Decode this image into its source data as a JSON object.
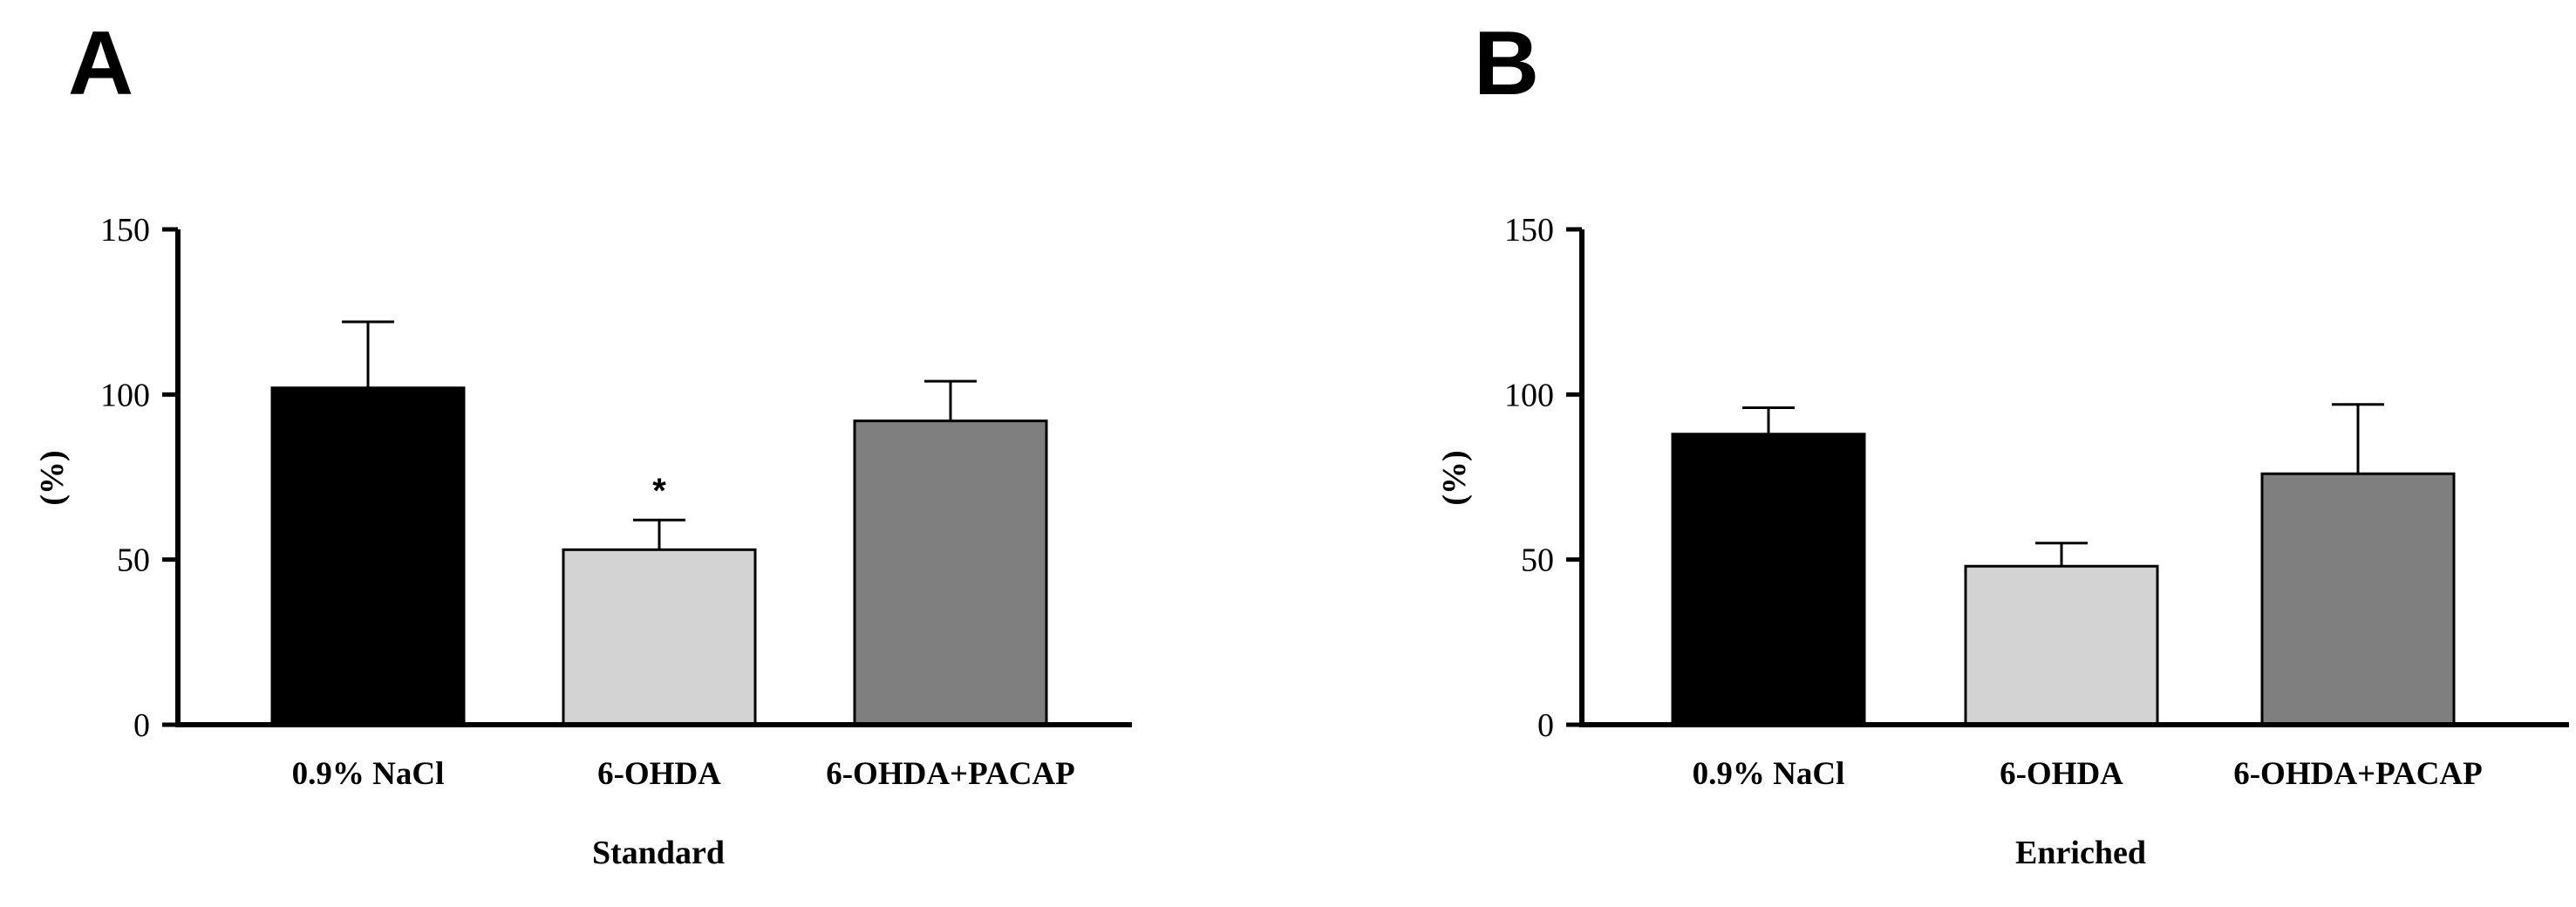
{
  "chart_data": [
    {
      "type": "bar",
      "panel": "A",
      "categories": [
        "0.9% NaCl",
        "6-OHDA",
        "6-OHDA+PACAP"
      ],
      "values": [
        102,
        53,
        92
      ],
      "errors": [
        20,
        9,
        12
      ],
      "annotations": [
        "",
        "*",
        ""
      ],
      "colors": [
        "#000000",
        "#d3d3d3",
        "#7f7f7f"
      ],
      "xlabel": "Standard",
      "ylabel": "(%)",
      "ylim": [
        0,
        150
      ],
      "yticks": [
        "0",
        "50",
        "100",
        "150"
      ],
      "grid": false
    },
    {
      "type": "bar",
      "panel": "B",
      "categories": [
        "0.9% NaCl",
        "6-OHDA",
        "6-OHDA+PACAP"
      ],
      "values": [
        88,
        48,
        76
      ],
      "errors": [
        8,
        7,
        21
      ],
      "annotations": [
        "",
        "",
        ""
      ],
      "colors": [
        "#000000",
        "#d3d3d3",
        "#7f7f7f"
      ],
      "xlabel": "Enriched",
      "ylabel": "(%)",
      "ylim": [
        0,
        150
      ],
      "yticks": [
        "0",
        "50",
        "100",
        "150"
      ],
      "grid": false
    }
  ]
}
